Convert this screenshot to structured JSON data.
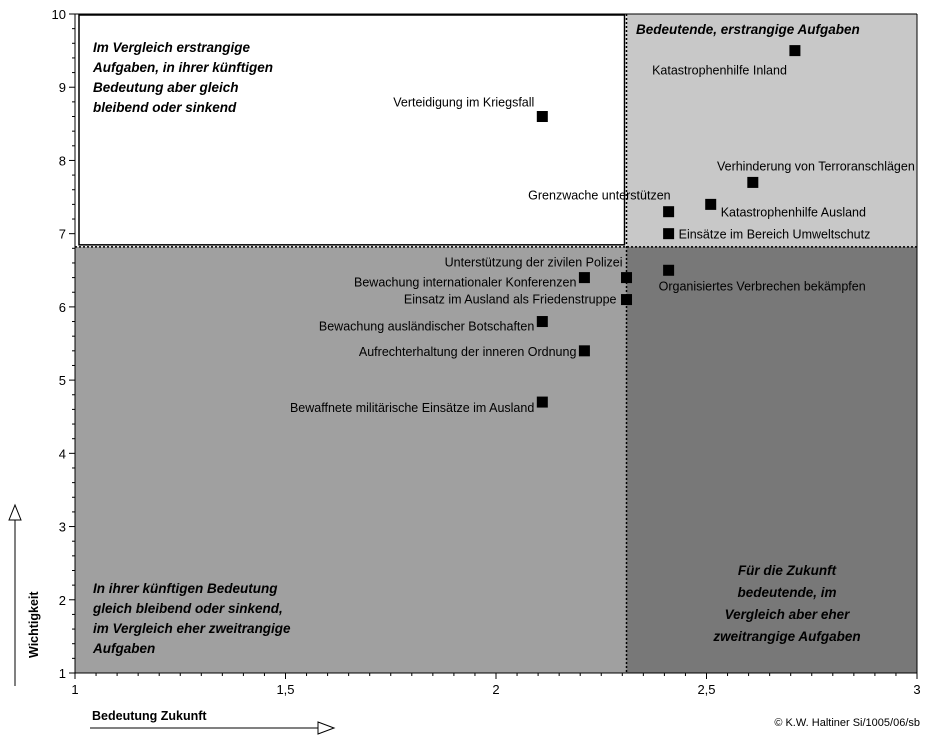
{
  "chart_data": {
    "type": "scatter",
    "title": "",
    "xlabel": "Bedeutung Zukunft",
    "ylabel": "Wichtigkeit",
    "xlim": [
      1,
      3
    ],
    "ylim": [
      1,
      10
    ],
    "xticks": [
      1,
      1.5,
      2,
      2.5,
      3
    ],
    "xtick_labels": [
      "1",
      "1,5",
      "2",
      "2,5",
      "3"
    ],
    "yticks": [
      1,
      2,
      3,
      4,
      5,
      6,
      7,
      8,
      9,
      10
    ],
    "ytick_labels": [
      "1",
      "2",
      "3",
      "4",
      "5",
      "6",
      "7",
      "8",
      "9",
      "10"
    ],
    "divider_x": 2.31,
    "divider_y": 6.82,
    "points": [
      {
        "label": "Katastrophenhilfe Inland",
        "x": 2.71,
        "y": 9.5
      },
      {
        "label": "Verteidigung im Kriegsfall",
        "x": 2.11,
        "y": 8.6
      },
      {
        "label": "Verhinderung von Terroranschlägen",
        "x": 2.61,
        "y": 7.7
      },
      {
        "label": "Katastrophenhilfe Ausland",
        "x": 2.51,
        "y": 7.4
      },
      {
        "label": "Grenzwache unterstützen",
        "x": 2.41,
        "y": 7.3
      },
      {
        "label": "Einsätze im Bereich Umweltschutz",
        "x": 2.41,
        "y": 7.0
      },
      {
        "label": "Organisiertes Verbrechen bekämpfen",
        "x": 2.41,
        "y": 6.5
      },
      {
        "label": "Unterstützung der zivilen Polizei",
        "x": 2.31,
        "y": 6.4
      },
      {
        "label": "Bewachung internationaler Konferenzen",
        "x": 2.21,
        "y": 6.4
      },
      {
        "label": "Einsatz im Ausland als Friedenstruppe",
        "x": 2.31,
        "y": 6.1
      },
      {
        "label": "Bewachung ausländischer Botschaften",
        "x": 2.11,
        "y": 5.8
      },
      {
        "label": "Aufrechterhaltung der inneren Ordnung",
        "x": 2.21,
        "y": 5.4
      },
      {
        "label": "Bewaffnete militärische Einsätze im Ausland",
        "x": 2.11,
        "y": 4.7
      }
    ],
    "quadrants": {
      "top_left": [
        "Im Vergleich erstrangige",
        "Aufgaben, in ihrer künftigen",
        "Bedeutung aber gleich",
        "bleibend oder sinkend"
      ],
      "top_right": [
        "Bedeutende, erstrangige Aufgaben"
      ],
      "bottom_left": [
        "In ihrer künftigen Bedeutung",
        "gleich bleibend oder sinkend,",
        "im Vergleich eher zweitrangige",
        "Aufgaben"
      ],
      "bottom_right": [
        "Für die Zukunft",
        "bedeutende, im",
        "Vergleich aber eher",
        "zweitrangige Aufgaben"
      ]
    },
    "colors": {
      "top_left": "#ffffff",
      "top_right": "#c8c8c8",
      "bottom_left": "#a0a0a0",
      "bottom_right": "#787878",
      "marker": "#000000"
    },
    "credit": "© K.W. Haltiner Si/1005/06/sb"
  }
}
